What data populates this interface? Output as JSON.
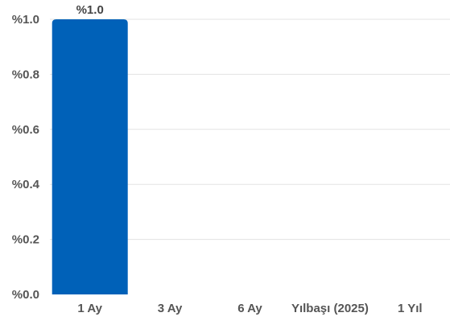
{
  "chart_data": {
    "type": "bar",
    "title": "",
    "xlabel": "",
    "ylabel": "",
    "categories": [
      "1 Ay",
      "3 Ay",
      "6 Ay",
      "Yılbaşı (2025)",
      "1 Yıl"
    ],
    "values": [
      1.0,
      0,
      0,
      0,
      0
    ],
    "data_labels": [
      "%1.0",
      "",
      "",
      "",
      ""
    ],
    "ylim": [
      0,
      1.0
    ],
    "yticks": [
      0,
      0.2,
      0.4,
      0.6,
      0.8,
      1.0
    ],
    "ytick_labels": [
      "%0.0",
      "%0.2",
      "%0.4",
      "%0.6",
      "%0.8",
      "%1.0"
    ],
    "grid": true,
    "legend": "none",
    "colors": {
      "bar": "#0061b8",
      "grid": "#e3e3e3",
      "tick_text": "#555555",
      "label_text": "#444444"
    }
  }
}
